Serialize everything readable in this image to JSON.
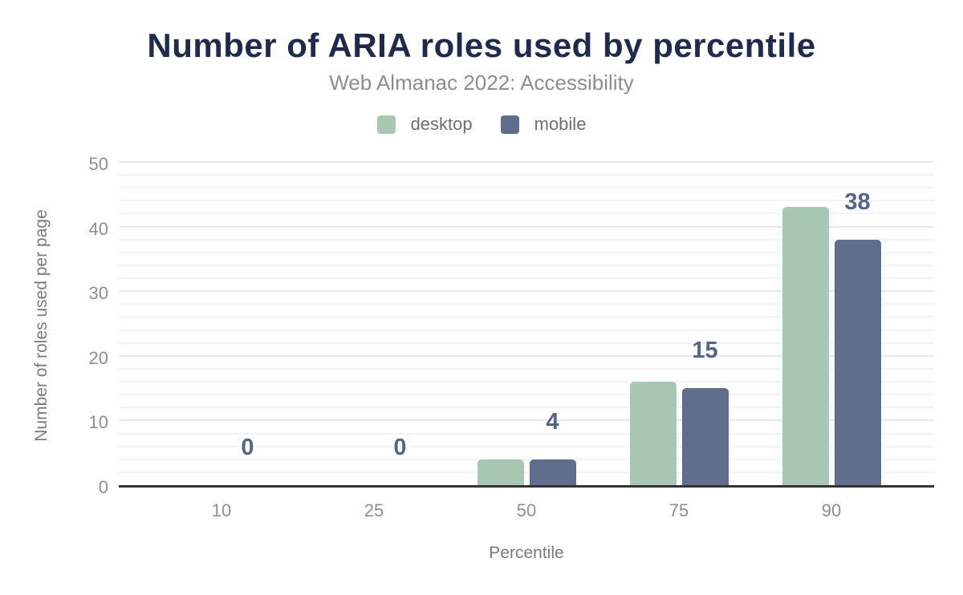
{
  "chart_data": {
    "type": "bar",
    "title": "Number of ARIA roles used by percentile",
    "subtitle": "Web Almanac 2022: Accessibility",
    "xlabel": "Percentile",
    "ylabel": "Number of roles used per page",
    "categories": [
      "10",
      "25",
      "50",
      "75",
      "90"
    ],
    "series": [
      {
        "name": "desktop",
        "color": "#a8c8b5",
        "values": [
          0,
          0,
          4,
          16,
          43
        ]
      },
      {
        "name": "mobile",
        "color": "#5f6e8c",
        "values": [
          0,
          0,
          4,
          15,
          38
        ]
      }
    ],
    "bar_labels": {
      "source_series": "mobile",
      "values": [
        "0",
        "0",
        "4",
        "15",
        "38"
      ],
      "color": "#54658d"
    },
    "y_axis": {
      "min": 0,
      "max": 50,
      "major_tick_step": 10,
      "minor_grid_step": 2,
      "tick_labels": [
        "0",
        "10",
        "20",
        "30",
        "40",
        "50"
      ]
    },
    "x_axis": {
      "tick_labels": [
        "10",
        "25",
        "50",
        "75",
        "90"
      ]
    },
    "legend": {
      "position": "top"
    },
    "grid": true,
    "colors": {
      "title": "#1f2a4c",
      "subtitle": "#8d8d8d",
      "axis_title": "#7b7b7b",
      "tick_label": "#8f8f8f",
      "grid_major": "#e9e9e9",
      "grid_minor": "#f4f4f4",
      "axis_line": "#333333"
    }
  }
}
